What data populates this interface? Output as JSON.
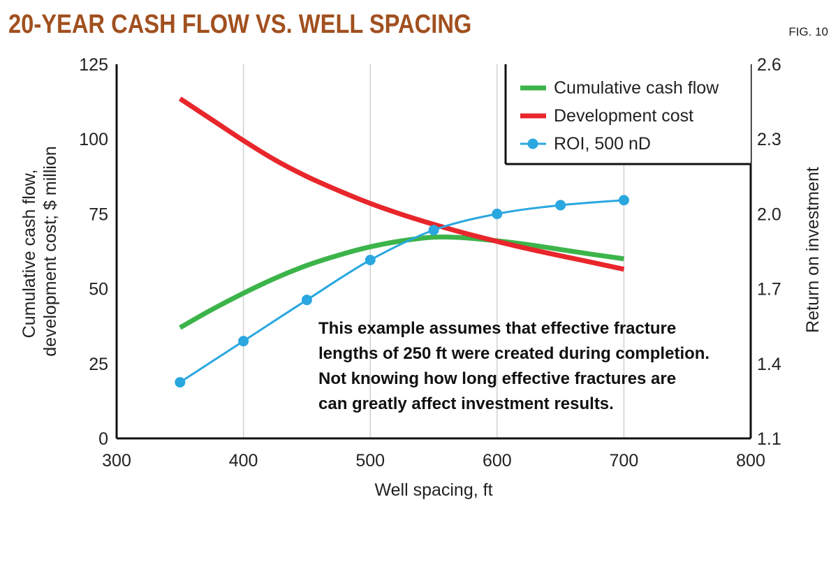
{
  "header": {
    "title": "20-YEAR CASH FLOW VS. WELL SPACING",
    "fig_label": "FIG. 10"
  },
  "colors": {
    "title": "#a1501f",
    "cash_flow": "#3cb44a",
    "development_cost": "#e8262b",
    "roi": "#2aa7df",
    "grid": "#d0d0d0",
    "axis": "#111111"
  },
  "chart_data": {
    "type": "line",
    "title": "20-YEAR CASH FLOW VS. WELL SPACING",
    "xlabel": "Well spacing, ft",
    "ylabel_lines": [
      "Cumulative cash flow,",
      "development cost; $ million"
    ],
    "y2label": "Return on investment",
    "xlim": [
      300,
      800
    ],
    "ylim": [
      0,
      125
    ],
    "y2lim": [
      1.1,
      2.6
    ],
    "x_ticks": [
      "300",
      "400",
      "500",
      "600",
      "700",
      "800"
    ],
    "x_tick_values": [
      300,
      400,
      500,
      600,
      700,
      800
    ],
    "y_ticks": [
      "0",
      "25",
      "50",
      "75",
      "100",
      "125"
    ],
    "y_tick_values": [
      0,
      25,
      50,
      75,
      100,
      125
    ],
    "y2_ticks": [
      "1.1",
      "1.4",
      "1.7",
      "2.0",
      "2.3",
      "2.6"
    ],
    "y2_tick_values": [
      1.1,
      1.4,
      1.7,
      2.0,
      2.3,
      2.6
    ],
    "grid": "vertical",
    "legend_position": "top-right",
    "series": [
      {
        "name": "Cumulative cash flow",
        "axis": "left",
        "x": [
          350,
          375,
          400,
          425,
          450,
          475,
          500,
          525,
          550,
          575,
          600,
          625,
          650,
          675,
          700
        ],
        "y": [
          37,
          43,
          48.5,
          53.5,
          57.8,
          61.2,
          64,
          66,
          67.2,
          67,
          66,
          64.7,
          63.1,
          61.5,
          60
        ]
      },
      {
        "name": "Development cost",
        "axis": "left",
        "x": [
          350,
          375,
          400,
          425,
          450,
          475,
          500,
          525,
          550,
          575,
          600,
          625,
          650,
          675,
          700
        ],
        "y": [
          113.5,
          106.5,
          99.5,
          93,
          87.5,
          82.8,
          78.5,
          74.8,
          71.5,
          68.5,
          65.8,
          63.3,
          61,
          58.8,
          56.5
        ]
      },
      {
        "name": "ROI, 500 nD",
        "axis": "right",
        "markers": true,
        "x": [
          350,
          400,
          450,
          500,
          550,
          600,
          650,
          700
        ],
        "y": [
          1.325,
          1.49,
          1.655,
          1.815,
          1.935,
          2.0,
          2.035,
          2.055
        ]
      }
    ],
    "annotation": [
      "This example assumes that effective fracture",
      "lengths of 250 ft were created during completion.",
      "Not knowing how long effective fractures are",
      "can greatly affect investment results."
    ]
  }
}
